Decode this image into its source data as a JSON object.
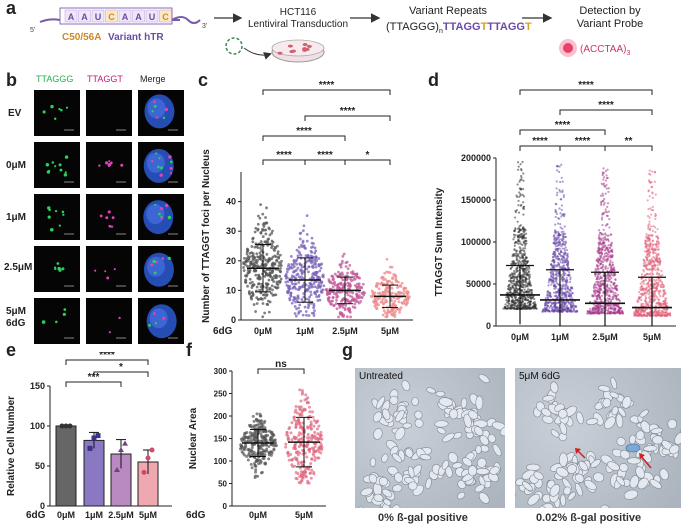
{
  "panel_a": {
    "label": "a",
    "rna_letters": [
      "A",
      "A",
      "U",
      "C",
      "A",
      "A",
      "U",
      "C"
    ],
    "five_prime": "5'",
    "three_prime": "3'",
    "hTR_label_orange": "C50/56A",
    "hTR_label_purple": "Variant hTR",
    "step2_line1": "HCT116",
    "step2_line2": "Lentiviral Transduction",
    "step3_line1": "Variant Repeats",
    "step3_prefix": "(TTAGGG)",
    "step3_sub": "n",
    "step3_purple": "TTAGG",
    "step3_yellow1": "T",
    "step3_purple2": "TTAGG",
    "step3_yellow2": "T",
    "step4_line1": "Detection by",
    "step4_line2": "Variant Probe",
    "probe": "(ACCTAA)",
    "probe_sub": "3"
  },
  "panel_b": {
    "label": "b",
    "col_headers": [
      "TTAGGG",
      "TTAGGT",
      "Merge"
    ],
    "row_labels": [
      "EV",
      "0μM",
      "1μM",
      "2.5μM",
      "5μM"
    ],
    "extra_label": "6dG"
  },
  "panel_c": {
    "label": "c",
    "significance": [
      "****",
      "****",
      "****",
      "****",
      "****",
      "*"
    ]
  },
  "panel_d": {
    "label": "d",
    "significance": [
      "****",
      "****",
      "****",
      "****",
      "****",
      "**"
    ]
  },
  "panel_e": {
    "label": "e",
    "significance": [
      "****",
      "*",
      "***"
    ]
  },
  "panel_f": {
    "label": "f",
    "significance": [
      "ns"
    ]
  },
  "panel_g": {
    "label": "g",
    "left_label": "Untreated",
    "right_label": "5μM 6dG",
    "left_caption": "0% ß-gal positive",
    "right_caption": "0.02% ß-gal positive"
  },
  "colors": {
    "green": "#22b14c",
    "magenta": "#c2187a",
    "purple": "#6a4ba8",
    "orange": "#c98a2a",
    "pink": "#e0607a",
    "grey": "#555555"
  },
  "chart_data": [
    {
      "id": "c",
      "type": "scatter",
      "ylabel": "Number of TTAGGT foci per Nucleus",
      "xlabel": "6dG",
      "categories": [
        "0μM",
        "1μM",
        "2.5μM",
        "5μM"
      ],
      "ylim": [
        0,
        50
      ],
      "yticks": [
        0,
        10,
        20,
        30,
        40
      ],
      "means": [
        17.5,
        13.5,
        10,
        8
      ],
      "sd": [
        8,
        7.5,
        4.5,
        3.8
      ],
      "colors": [
        "#555555",
        "#7a63b8",
        "#c25a9a",
        "#ec8a8a"
      ]
    },
    {
      "id": "d",
      "type": "scatter",
      "ylabel": "TTAGGT Sum Intensity",
      "categories": [
        "0μM",
        "1μM",
        "2.5μM",
        "5μM"
      ],
      "ylim": [
        0,
        200000
      ],
      "yticks": [
        0,
        50000,
        100000,
        150000,
        200000
      ],
      "ytick_labels": [
        "0",
        "50000",
        "100000",
        "150000",
        "200000"
      ],
      "means": [
        37000,
        31000,
        27000,
        22000
      ],
      "sd": [
        35000,
        36000,
        37000,
        36000
      ],
      "colors": [
        "#333333",
        "#6a4ba8",
        "#a63a8a",
        "#e0607a"
      ]
    },
    {
      "id": "e",
      "type": "bar",
      "ylabel": "Relative Cell Number",
      "xlabel": "6dG",
      "categories": [
        "0μM",
        "1μM",
        "2.5μM",
        "5μM"
      ],
      "values": [
        100,
        82,
        65,
        55
      ],
      "err": [
        0,
        10,
        18,
        15
      ],
      "ylim": [
        0,
        150
      ],
      "yticks": [
        0,
        50,
        100,
        150
      ],
      "colors": [
        "#666666",
        "#8a78c2",
        "#b98ac2",
        "#f0a8b0"
      ],
      "point_colors": [
        "#333333",
        "#3a2f8a",
        "#7a3a8a",
        "#d04a6a"
      ],
      "points": [
        [
          100,
          100,
          100
        ],
        [
          72,
          85,
          88
        ],
        [
          45,
          70,
          78
        ],
        [
          42,
          60,
          70
        ]
      ]
    },
    {
      "id": "f",
      "type": "scatter",
      "ylabel": "Nuclear Area",
      "xlabel": "6dG",
      "categories": [
        "0μM",
        "5μM"
      ],
      "ylim": [
        0,
        300
      ],
      "yticks": [
        0,
        50,
        100,
        150,
        200,
        250,
        300
      ],
      "means": [
        140,
        142
      ],
      "sd": [
        30,
        55
      ],
      "colors": [
        "#555555",
        "#e06a80"
      ]
    }
  ]
}
